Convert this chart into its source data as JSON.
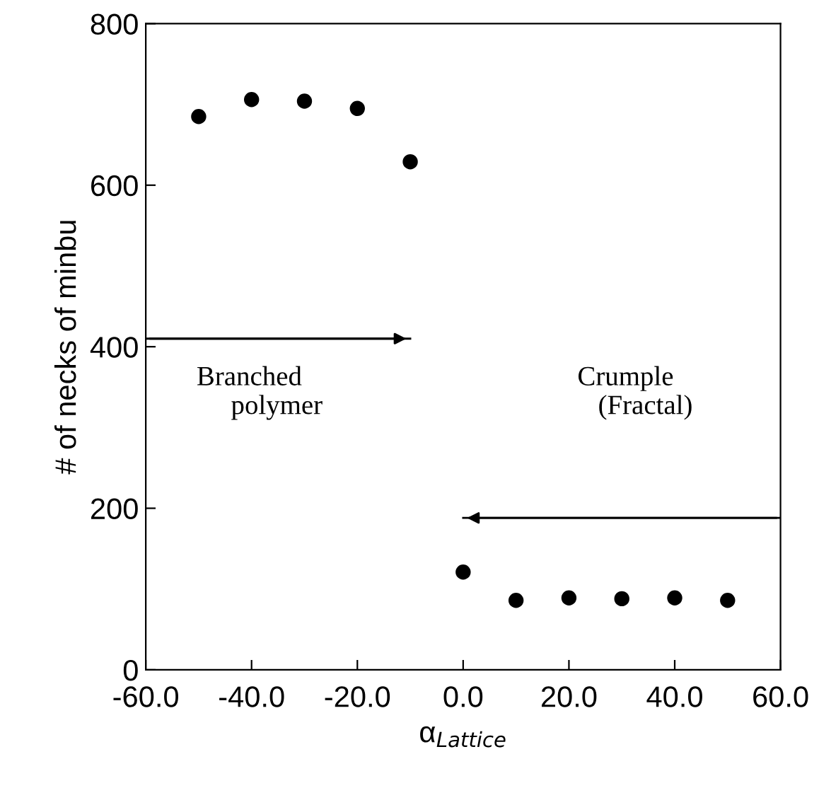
{
  "chart_data": {
    "type": "scatter",
    "xlabel": "α$_{Lattice}$",
    "ylabel": "# of necks of minbu",
    "x": [
      -50,
      -40,
      -30,
      -20,
      -10,
      0,
      10,
      20,
      30,
      40,
      50
    ],
    "series": [
      {
        "color": "#000000",
        "marker": "circle",
        "values": [
          685,
          706,
          704,
          695,
          629,
          121,
          86,
          89,
          88,
          89,
          86
        ]
      },
      {
        "type": "line",
        "color": "#000000",
        "marker": "none",
        "x": [
          -60,
          -10
        ],
        "values": [
          410,
          410
        ]
      },
      {
        "type": "line",
        "color": "#000000",
        "marker": "none",
        "x": [
          60,
          0
        ],
        "values": [
          188,
          188
        ]
      }
    ],
    "annotations": [
      "Branched\n     polymer",
      "Crumple\n   (Fractal)"
    ],
    "xlim": [
      -60,
      60
    ],
    "xticks": [
      {
        "value": -60,
        "label": "-60.0"
      },
      {
        "value": -40,
        "label": "-40.0"
      },
      {
        "value": -20,
        "label": "-20.0"
      },
      {
        "value": 0,
        "label": "0.0"
      },
      {
        "value": 20,
        "label": "20.0"
      },
      {
        "value": 40,
        "label": "40.0"
      },
      {
        "value": 60,
        "label": "60.0"
      }
    ],
    "ylim": [
      0,
      800
    ],
    "yticks": [
      0,
      200,
      400,
      600,
      800
    ],
    "grid": false,
    "legend": false
  }
}
